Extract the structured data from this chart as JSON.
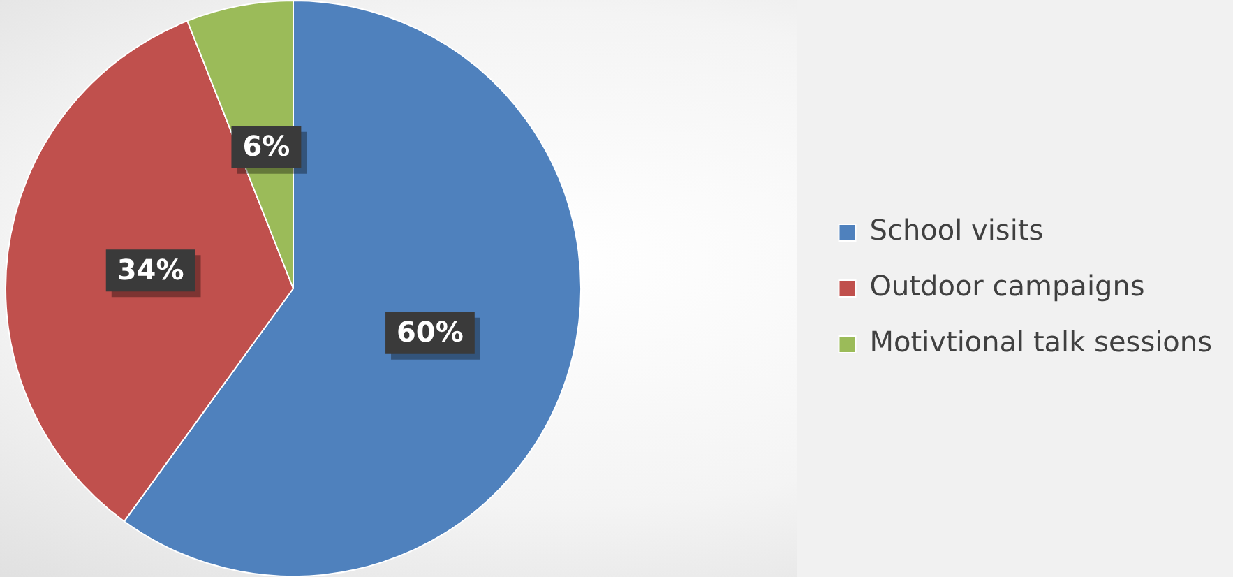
{
  "chart_data": {
    "type": "pie",
    "categories": [
      "School visits",
      "Outdoor campaigns",
      "Motivtional talk sessions"
    ],
    "values": [
      60,
      34,
      6
    ],
    "colors": [
      "#4f81bd",
      "#c0504d",
      "#9bbb59"
    ],
    "value_labels": [
      "60%",
      "34%",
      "6%"
    ],
    "legend": "right"
  }
}
